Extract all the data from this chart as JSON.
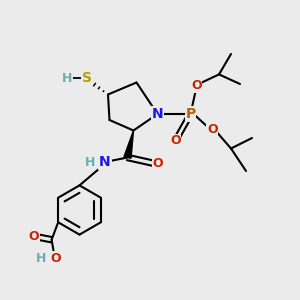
{
  "background_color": "#ebebeb",
  "figsize": [
    3.0,
    3.0
  ],
  "dpi": 100,
  "colors": {
    "bond": "black",
    "S": "#b8a000",
    "H": "#6aafaf",
    "N": "#1a1ae6",
    "P": "#c06000",
    "O": "#cc2200"
  }
}
